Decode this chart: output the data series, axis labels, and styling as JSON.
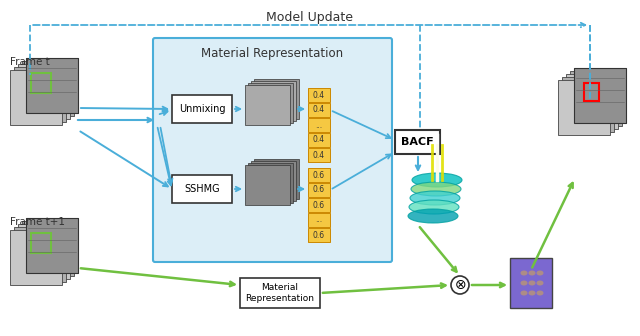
{
  "title": "Model Update",
  "frame_t_label": "Frame t",
  "frame_t1_label": "Frame t+1",
  "material_rep_box_label": "Material Representation",
  "material_rep_bottom_label": "Material\nRepresentation",
  "unmixing_label": "Unmixing",
  "sshmg_label": "SSHMG",
  "bacf_label": "BACF",
  "unmixing_values": [
    "0.4",
    "0.4",
    "...",
    "0.4",
    "0.4"
  ],
  "sshmg_values": [
    "0.6",
    "0.6",
    "0.6",
    "...",
    "0.6"
  ],
  "blue_color": "#4aaed9",
  "green_color": "#70c040",
  "orange_color": "#f5a623",
  "box_bg_color": "#dceef7",
  "box_border_color": "#4aaed9",
  "background_color": "#ffffff"
}
